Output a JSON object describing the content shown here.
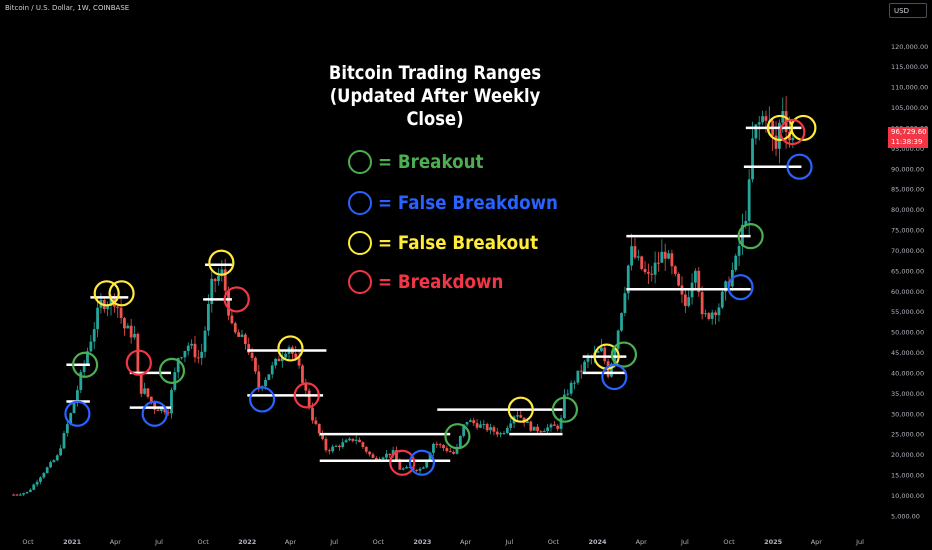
{
  "header": {
    "symbol_line": "Bitcoin / U.S. Dollar, 1W, COINBASE",
    "currency_label": "USD",
    "last_price": "96,729.60",
    "countdown": "11:38:39"
  },
  "colors": {
    "background": "#000000",
    "candle_up": "#26a69a",
    "candle_down": "#ef5350",
    "level_line": "#ffffff",
    "breakout": "#4caf50",
    "false_breakdown": "#2962ff",
    "false_breakout": "#ffeb3b",
    "breakdown": "#f23645"
  },
  "chart_data": {
    "type": "candlestick",
    "title": "Bitcoin Trading Ranges\n(Updated After Weekly Close)",
    "title_lines": [
      "Bitcoin Trading Ranges",
      "(Updated After Weekly Close)"
    ],
    "timeframe": "1W",
    "x_ticks": [
      "Oct",
      "2021",
      "Apr",
      "Jul",
      "Oct",
      "2022",
      "Apr",
      "Jul",
      "Oct",
      "2023",
      "Apr",
      "Jul",
      "Oct",
      "2024",
      "Apr",
      "Jul",
      "Oct",
      "2025",
      "Apr",
      "Jul"
    ],
    "y_ticks": [
      "120,000.00",
      "115,000.00",
      "110,000.00",
      "105,000.00",
      "100,000.00",
      "95,000.00",
      "90,000.00",
      "85,000.00",
      "80,000.00",
      "75,000.00",
      "70,000.00",
      "65,000.00",
      "60,000.00",
      "55,000.00",
      "50,000.00",
      "45,000.00",
      "40,000.00",
      "35,000.00",
      "30,000.00",
      "25,000.00",
      "20,000.00",
      "15,000.00",
      "10,000.00",
      "5,000.00"
    ],
    "y_tick_values": [
      120000,
      115000,
      110000,
      105000,
      100000,
      95000,
      90000,
      85000,
      80000,
      75000,
      70000,
      65000,
      60000,
      55000,
      50000,
      45000,
      40000,
      35000,
      30000,
      25000,
      20000,
      15000,
      10000,
      5000
    ],
    "ylim": [
      3000,
      123000
    ],
    "x_tick_dates": [
      "2020-10-01",
      "2021-01-01",
      "2021-04-01",
      "2021-07-01",
      "2021-10-01",
      "2022-01-01",
      "2022-04-01",
      "2022-07-01",
      "2022-10-01",
      "2023-01-01",
      "2023-04-01",
      "2023-07-01",
      "2023-10-01",
      "2024-01-01",
      "2024-04-01",
      "2024-07-01",
      "2024-10-01",
      "2025-01-01",
      "2025-04-01",
      "2025-07-01"
    ],
    "price_path": [
      [
        "2020-09-01",
        10200
      ],
      [
        "2020-10-01",
        10800
      ],
      [
        "2020-11-01",
        15500
      ],
      [
        "2020-12-01",
        19500
      ],
      [
        "2021-01-01",
        31000
      ],
      [
        "2021-02-01",
        45000
      ],
      [
        "2021-03-01",
        57000
      ],
      [
        "2021-04-01",
        58000
      ],
      [
        "2021-04-20",
        51000
      ],
      [
        "2021-05-12",
        49000
      ],
      [
        "2021-05-20",
        36000
      ],
      [
        "2021-06-01",
        35500
      ],
      [
        "2021-06-22",
        31500
      ],
      [
        "2021-07-20",
        31000
      ],
      [
        "2021-08-10",
        44000
      ],
      [
        "2021-09-01",
        47000
      ],
      [
        "2021-09-25",
        43000
      ],
      [
        "2021-10-20",
        62000
      ],
      [
        "2021-11-10",
        64500
      ],
      [
        "2021-12-01",
        50000
      ],
      [
        "2022-01-01",
        47000
      ],
      [
        "2022-01-25",
        36500
      ],
      [
        "2022-03-28",
        47000
      ],
      [
        "2022-04-25",
        39000
      ],
      [
        "2022-05-15",
        29500
      ],
      [
        "2022-06-15",
        21000
      ],
      [
        "2022-08-15",
        24000
      ],
      [
        "2022-09-20",
        19000
      ],
      [
        "2022-11-01",
        20500
      ],
      [
        "2022-11-15",
        16500
      ],
      [
        "2022-12-31",
        16500
      ],
      [
        "2023-01-25",
        23000
      ],
      [
        "2023-03-10",
        20000
      ],
      [
        "2023-04-01",
        28500
      ],
      [
        "2023-06-15",
        25000
      ],
      [
        "2023-07-15",
        30500
      ],
      [
        "2023-08-20",
        26000
      ],
      [
        "2023-10-15",
        27000
      ],
      [
        "2023-10-25",
        34500
      ],
      [
        "2023-12-10",
        43000
      ],
      [
        "2024-01-10",
        45500
      ],
      [
        "2024-01-24",
        39500
      ],
      [
        "2024-02-15",
        52000
      ],
      [
        "2024-03-10",
        70000
      ],
      [
        "2024-04-15",
        63000
      ],
      [
        "2024-05-20",
        70000
      ],
      [
        "2024-07-01",
        56000
      ],
      [
        "2024-07-25",
        68000
      ],
      [
        "2024-08-05",
        53000
      ],
      [
        "2024-09-10",
        56500
      ],
      [
        "2024-10-15",
        67000
      ],
      [
        "2024-11-10",
        82000
      ],
      [
        "2024-11-20",
        98000
      ],
      [
        "2024-12-17",
        104000
      ],
      [
        "2025-01-06",
        94000
      ],
      [
        "2025-01-20",
        106000
      ],
      [
        "2025-02-05",
        97000
      ],
      [
        "2025-02-17",
        96700
      ]
    ],
    "levels": [
      {
        "start": "2020-12-20",
        "end": "2021-02-07",
        "price": 42000
      },
      {
        "start": "2020-12-20",
        "end": "2021-02-07",
        "price": 33000
      },
      {
        "start": "2021-02-08",
        "end": "2021-04-28",
        "price": 58500
      },
      {
        "start": "2021-05-01",
        "end": "2021-07-26",
        "price": 40000
      },
      {
        "start": "2021-05-01",
        "end": "2021-07-26",
        "price": 31500
      },
      {
        "start": "2021-10-05",
        "end": "2021-11-30",
        "price": 66500
      },
      {
        "start": "2021-10-01",
        "end": "2021-11-30",
        "price": 58000
      },
      {
        "start": "2022-01-01",
        "end": "2022-06-15",
        "price": 45500
      },
      {
        "start": "2022-01-01",
        "end": "2022-06-08",
        "price": 34500
      },
      {
        "start": "2022-06-01",
        "end": "2023-02-28",
        "price": 25000
      },
      {
        "start": "2022-06-01",
        "end": "2023-02-28",
        "price": 18500
      },
      {
        "start": "2023-02-01",
        "end": "2023-10-20",
        "price": 31000
      },
      {
        "start": "2023-07-01",
        "end": "2023-10-20",
        "price": 25000
      },
      {
        "start": "2023-12-01",
        "end": "2024-03-01",
        "price": 44000
      },
      {
        "start": "2023-12-01",
        "end": "2024-03-01",
        "price": 40000
      },
      {
        "start": "2024-03-01",
        "end": "2024-11-15",
        "price": 73500
      },
      {
        "start": "2024-03-01",
        "end": "2024-11-15",
        "price": 60500
      },
      {
        "start": "2024-11-05",
        "end": "2025-03-01",
        "price": 100000
      },
      {
        "start": "2024-11-01",
        "end": "2025-03-01",
        "price": 90500
      }
    ],
    "markers": [
      {
        "kind": "false_breakdown",
        "date": "2021-01-12",
        "price": 30000
      },
      {
        "kind": "breakout",
        "date": "2021-01-28",
        "price": 42000
      },
      {
        "kind": "false_breakout",
        "date": "2021-03-14",
        "price": 59500
      },
      {
        "kind": "false_breakout",
        "date": "2021-04-14",
        "price": 59500
      },
      {
        "kind": "breakdown",
        "date": "2021-05-20",
        "price": 42500
      },
      {
        "kind": "false_breakdown",
        "date": "2021-06-22",
        "price": 30000
      },
      {
        "kind": "breakout",
        "date": "2021-07-28",
        "price": 40500
      },
      {
        "kind": "false_breakout",
        "date": "2021-11-08",
        "price": 67000
      },
      {
        "kind": "breakdown",
        "date": "2021-12-10",
        "price": 58000
      },
      {
        "kind": "false_breakdown",
        "date": "2022-02-01",
        "price": 33500
      },
      {
        "kind": "false_breakout",
        "date": "2022-04-01",
        "price": 46000
      },
      {
        "kind": "breakdown",
        "date": "2022-05-05",
        "price": 34500
      },
      {
        "kind": "breakdown",
        "date": "2022-11-20",
        "price": 18000
      },
      {
        "kind": "false_breakdown",
        "date": "2022-12-31",
        "price": 18000
      },
      {
        "kind": "breakout",
        "date": "2023-03-15",
        "price": 24500
      },
      {
        "kind": "false_breakout",
        "date": "2023-07-25",
        "price": 31000
      },
      {
        "kind": "breakout",
        "date": "2023-10-25",
        "price": 31000
      },
      {
        "kind": "false_breakout",
        "date": "2024-01-20",
        "price": 44000
      },
      {
        "kind": "breakout",
        "date": "2024-02-25",
        "price": 44500
      },
      {
        "kind": "false_breakdown",
        "date": "2024-02-05",
        "price": 39000
      },
      {
        "kind": "false_breakdown",
        "date": "2024-10-25",
        "price": 61000
      },
      {
        "kind": "breakout",
        "date": "2024-11-15",
        "price": 73500
      },
      {
        "kind": "false_breakout",
        "date": "2025-01-15",
        "price": 100000
      },
      {
        "kind": "false_breakout",
        "date": "2025-03-05",
        "price": 100000
      },
      {
        "kind": "breakdown",
        "date": "2025-02-10",
        "price": 99000
      },
      {
        "kind": "false_breakdown",
        "date": "2025-02-25",
        "price": 90500
      }
    ],
    "legend": [
      {
        "kind": "breakout",
        "label": "= Breakout"
      },
      {
        "kind": "false_breakdown",
        "label": "= False Breakdown"
      },
      {
        "kind": "false_breakout",
        "label": "= False Breakout"
      },
      {
        "kind": "breakdown",
        "label": "= Breakdown"
      }
    ]
  }
}
